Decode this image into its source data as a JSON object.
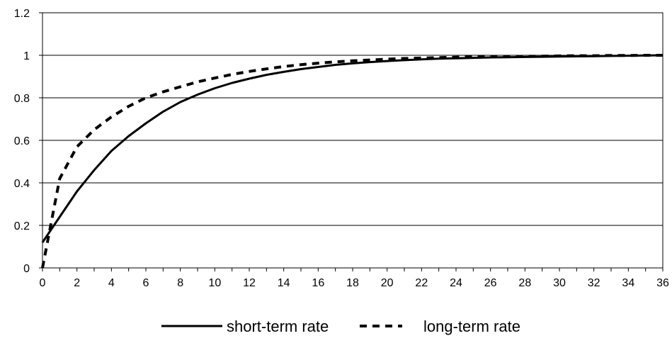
{
  "chart_data": {
    "type": "line",
    "title": "",
    "xlabel": "",
    "ylabel": "",
    "xlim": [
      0,
      36
    ],
    "ylim": [
      0,
      1.2
    ],
    "x_ticks": [
      "0",
      "2",
      "4",
      "6",
      "8",
      "10",
      "12",
      "14",
      "16",
      "18",
      "20",
      "22",
      "24",
      "26",
      "28",
      "30",
      "32",
      "34",
      "36"
    ],
    "y_ticks": [
      "0",
      "0.2",
      "0.4",
      "0.6",
      "0.8",
      "1",
      "1.2"
    ],
    "grid": "horizontal",
    "legend": "bottom",
    "x": [
      0,
      1,
      2,
      3,
      4,
      5,
      6,
      7,
      8,
      9,
      10,
      11,
      12,
      13,
      14,
      15,
      16,
      17,
      18,
      19,
      20,
      21,
      22,
      23,
      24,
      25,
      26,
      27,
      28,
      29,
      30,
      31,
      32,
      33,
      34,
      35,
      36
    ],
    "series": [
      {
        "name": "short-term rate",
        "style": "solid",
        "color": "#000000",
        "values": [
          0.12,
          0.24,
          0.36,
          0.46,
          0.55,
          0.62,
          0.68,
          0.735,
          0.78,
          0.815,
          0.845,
          0.87,
          0.89,
          0.908,
          0.922,
          0.935,
          0.945,
          0.955,
          0.962,
          0.968,
          0.973,
          0.977,
          0.981,
          0.984,
          0.986,
          0.988,
          0.99,
          0.991,
          0.992,
          0.993,
          0.994,
          0.995,
          0.996,
          0.997,
          0.998,
          0.999,
          1.0
        ]
      },
      {
        "name": "long-term rate",
        "style": "dashed",
        "color": "#000000",
        "values": [
          0.0,
          0.42,
          0.57,
          0.65,
          0.71,
          0.76,
          0.8,
          0.828,
          0.852,
          0.875,
          0.893,
          0.91,
          0.924,
          0.936,
          0.947,
          0.956,
          0.963,
          0.969,
          0.974,
          0.978,
          0.982,
          0.985,
          0.987,
          0.989,
          0.991,
          0.992,
          0.993,
          0.994,
          0.995,
          0.996,
          0.997,
          0.998,
          0.998,
          0.999,
          0.999,
          1.0,
          1.0
        ]
      }
    ]
  }
}
